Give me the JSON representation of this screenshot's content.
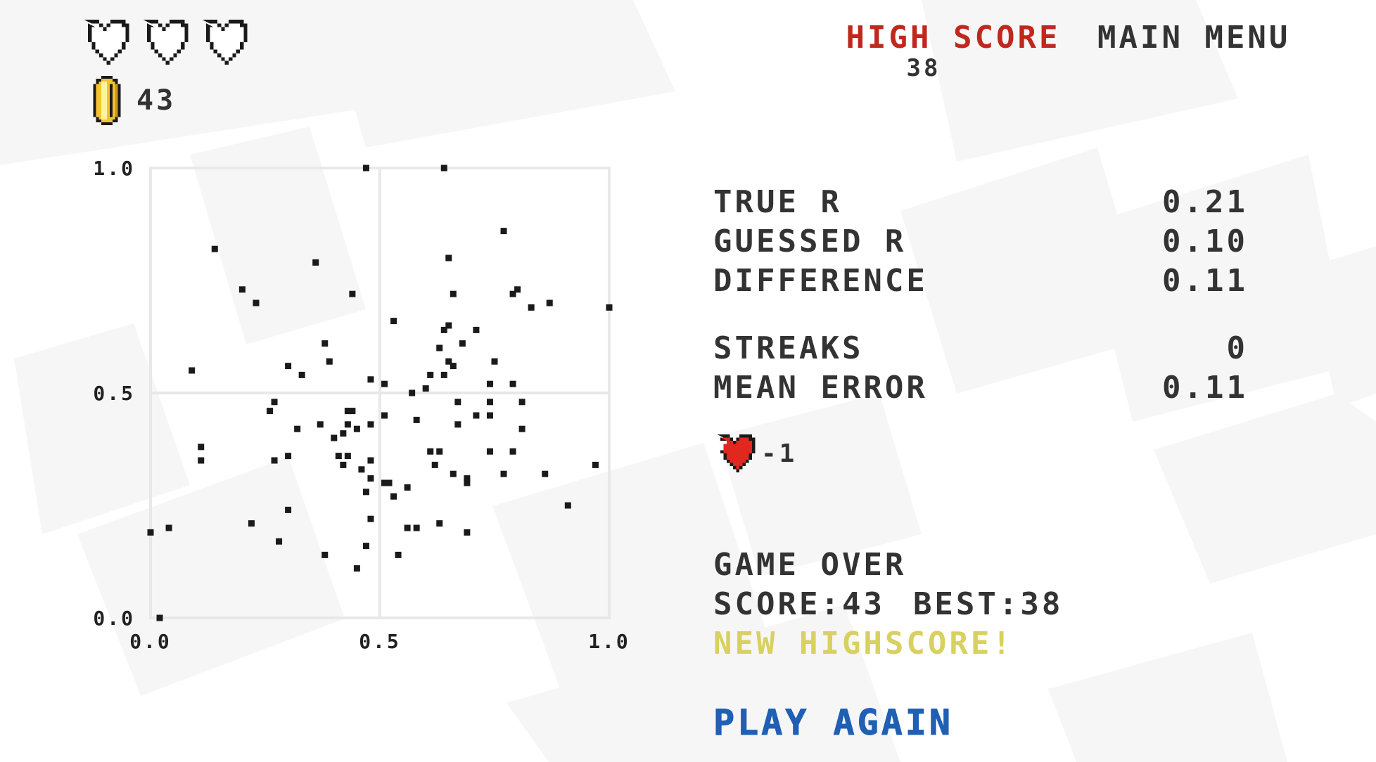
{
  "hud": {
    "lives": {
      "max": 3,
      "remaining": 0
    },
    "coins": "43",
    "high_score_label": "HIGH SCORE",
    "high_score_value": "38",
    "main_menu_label": "MAIN MENU"
  },
  "colors": {
    "high_score": "#c0281e",
    "new_highscore": "#d8d060",
    "play_again": "#1f5fb4",
    "heart_red": "#e0281e",
    "coin_gold": "#f4c430",
    "grid": "#e8e8e8",
    "point": "#1a1a1a"
  },
  "stats": [
    {
      "label": "TRUE R",
      "value": "0.21"
    },
    {
      "label": "GUESSED R",
      "value": "0.10"
    },
    {
      "label": "DIFFERENCE",
      "value": "0.11"
    },
    {
      "label": "STREAKS",
      "value": "0"
    },
    {
      "label": "MEAN ERROR",
      "value": "0.11"
    }
  ],
  "life_change": "-1",
  "game_over": {
    "title": "GAME OVER",
    "score_label": "SCORE:",
    "score_value": "43",
    "best_label": "BEST:",
    "best_value": "38",
    "new_highscore": "NEW HIGHSCORE!",
    "play_again_label": "PLAY AGAIN"
  },
  "chart_data": {
    "type": "scatter",
    "xlim": [
      0,
      1
    ],
    "ylim": [
      0,
      1
    ],
    "x_ticks": [
      "0.0",
      "0.5",
      "1.0"
    ],
    "y_ticks": [
      "0.0",
      "0.5",
      "1.0"
    ],
    "grid": true,
    "points": [
      [
        0.47,
        1.0
      ],
      [
        0.64,
        1.0
      ],
      [
        0.77,
        0.86
      ],
      [
        0.14,
        0.82
      ],
      [
        0.65,
        0.8
      ],
      [
        0.36,
        0.79
      ],
      [
        0.2,
        0.73
      ],
      [
        0.44,
        0.72
      ],
      [
        0.66,
        0.72
      ],
      [
        0.8,
        0.73
      ],
      [
        0.79,
        0.72
      ],
      [
        0.23,
        0.7
      ],
      [
        0.83,
        0.69
      ],
      [
        0.87,
        0.7
      ],
      [
        1.0,
        0.69
      ],
      [
        0.53,
        0.66
      ],
      [
        0.65,
        0.65
      ],
      [
        0.64,
        0.64
      ],
      [
        0.71,
        0.64
      ],
      [
        0.38,
        0.61
      ],
      [
        0.68,
        0.61
      ],
      [
        0.63,
        0.6
      ],
      [
        0.39,
        0.57
      ],
      [
        0.09,
        0.55
      ],
      [
        0.3,
        0.56
      ],
      [
        0.65,
        0.57
      ],
      [
        0.75,
        0.57
      ],
      [
        0.66,
        0.56
      ],
      [
        0.33,
        0.54
      ],
      [
        0.61,
        0.54
      ],
      [
        0.64,
        0.54
      ],
      [
        0.48,
        0.53
      ],
      [
        0.51,
        0.52
      ],
      [
        0.74,
        0.52
      ],
      [
        0.79,
        0.52
      ],
      [
        0.6,
        0.51
      ],
      [
        0.57,
        0.5
      ],
      [
        0.27,
        0.48
      ],
      [
        0.81,
        0.48
      ],
      [
        0.67,
        0.48
      ],
      [
        0.74,
        0.48
      ],
      [
        0.26,
        0.46
      ],
      [
        0.43,
        0.46
      ],
      [
        0.44,
        0.46
      ],
      [
        0.51,
        0.45
      ],
      [
        0.58,
        0.44
      ],
      [
        0.74,
        0.45
      ],
      [
        0.71,
        0.45
      ],
      [
        0.37,
        0.43
      ],
      [
        0.32,
        0.42
      ],
      [
        0.43,
        0.43
      ],
      [
        0.48,
        0.43
      ],
      [
        0.45,
        0.42
      ],
      [
        0.67,
        0.43
      ],
      [
        0.81,
        0.42
      ],
      [
        0.42,
        0.41
      ],
      [
        0.4,
        0.4
      ],
      [
        0.11,
        0.38
      ],
      [
        0.61,
        0.37
      ],
      [
        0.63,
        0.37
      ],
      [
        0.74,
        0.37
      ],
      [
        0.79,
        0.37
      ],
      [
        0.11,
        0.35
      ],
      [
        0.27,
        0.35
      ],
      [
        0.3,
        0.36
      ],
      [
        0.41,
        0.36
      ],
      [
        0.43,
        0.36
      ],
      [
        0.48,
        0.35
      ],
      [
        0.62,
        0.34
      ],
      [
        0.97,
        0.34
      ],
      [
        0.42,
        0.34
      ],
      [
        0.46,
        0.33
      ],
      [
        0.66,
        0.32
      ],
      [
        0.77,
        0.32
      ],
      [
        0.86,
        0.32
      ],
      [
        0.48,
        0.31
      ],
      [
        0.51,
        0.3
      ],
      [
        0.52,
        0.3
      ],
      [
        0.69,
        0.31
      ],
      [
        0.69,
        0.3
      ],
      [
        0.56,
        0.29
      ],
      [
        0.47,
        0.28
      ],
      [
        0.53,
        0.27
      ],
      [
        0.91,
        0.25
      ],
      [
        0.3,
        0.24
      ],
      [
        0.48,
        0.22
      ],
      [
        0.22,
        0.21
      ],
      [
        0.63,
        0.21
      ],
      [
        0.04,
        0.2
      ],
      [
        0.0,
        0.19
      ],
      [
        0.56,
        0.2
      ],
      [
        0.58,
        0.2
      ],
      [
        0.69,
        0.19
      ],
      [
        0.28,
        0.17
      ],
      [
        0.47,
        0.16
      ],
      [
        0.54,
        0.14
      ],
      [
        0.38,
        0.14
      ],
      [
        0.45,
        0.11
      ],
      [
        0.02,
        0.0
      ]
    ]
  }
}
